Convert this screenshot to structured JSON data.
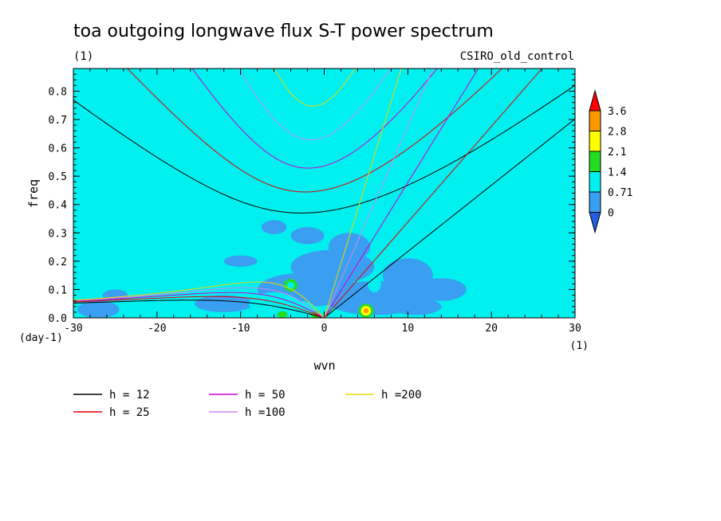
{
  "chart_data": {
    "type": "heatmap",
    "title": "toa outgoing longwave flux S-T power spectrum",
    "units_label": "(1)",
    "model_label": "CSIRO_old_control",
    "xlabel": "wvn",
    "ylabel": "freq",
    "y_units_label": "(day-1)",
    "x_units_label": "(1)",
    "xlim": [
      -30,
      30
    ],
    "ylim": [
      0,
      0.88
    ],
    "x_ticks": [
      "-30",
      "-20",
      "-10",
      "0",
      "10",
      "20",
      "30"
    ],
    "y_ticks": [
      "0.0",
      "0.1",
      "0.2",
      "0.3",
      "0.4",
      "0.5",
      "0.6",
      "0.7",
      "0.8"
    ],
    "colorbar": {
      "labels": [
        "0",
        "0.71",
        "1.4",
        "2.1",
        "2.8",
        "3.6"
      ],
      "colors": [
        "#1f5fe0",
        "#3a9ff0",
        "#00f0f0",
        "#22dd22",
        "#ffff00",
        "#ff9900",
        "#ff0000"
      ]
    },
    "background_level_color": "#00f0f0",
    "dispersion_curves": [
      {
        "label": "h = 12",
        "h": 12,
        "color": "#000000"
      },
      {
        "label": "h = 25",
        "h": 25,
        "color": "#e00000"
      },
      {
        "label": "h = 50",
        "h": 50,
        "color": "#cc00cc"
      },
      {
        "label": "h =100",
        "h": 100,
        "color": "#cc88ee"
      },
      {
        "label": "h =200",
        "h": 200,
        "color": "#e8d800"
      }
    ],
    "blobs": [
      {
        "x": -25,
        "y": 0.08,
        "rx": 1.5,
        "ry": 0.02,
        "level": 1
      },
      {
        "x": -27,
        "y": 0.03,
        "rx": 2.5,
        "ry": 0.03,
        "level": 1
      },
      {
        "x": -6,
        "y": 0.32,
        "rx": 1.5,
        "ry": 0.025,
        "level": 1
      },
      {
        "x": -2,
        "y": 0.29,
        "rx": 2.0,
        "ry": 0.03,
        "level": 1
      },
      {
        "x": 1,
        "y": 0.18,
        "rx": 5.0,
        "ry": 0.06,
        "level": 1
      },
      {
        "x": 3,
        "y": 0.25,
        "rx": 2.5,
        "ry": 0.05,
        "level": 1
      },
      {
        "x": -2,
        "y": 0.1,
        "rx": 6.0,
        "ry": 0.06,
        "level": 1
      },
      {
        "x": 6,
        "y": 0.07,
        "rx": 6.0,
        "ry": 0.06,
        "level": 1
      },
      {
        "x": 10,
        "y": 0.15,
        "rx": 3.0,
        "ry": 0.06,
        "level": 1
      },
      {
        "x": 14,
        "y": 0.1,
        "rx": 3.0,
        "ry": 0.04,
        "level": 1
      },
      {
        "x": 11,
        "y": 0.04,
        "rx": 3.0,
        "ry": 0.03,
        "level": 1
      },
      {
        "x": -10,
        "y": 0.2,
        "rx": 2.0,
        "ry": 0.02,
        "level": 1
      },
      {
        "x": -12,
        "y": 0.05,
        "rx": 3.5,
        "ry": 0.03,
        "level": 1
      },
      {
        "x": -6,
        "y": 0.05,
        "rx": 3.0,
        "ry": 0.04,
        "level": 2
      },
      {
        "x": -3,
        "y": 0.03,
        "rx": 2.0,
        "ry": 0.03,
        "level": 2
      },
      {
        "x": 6,
        "y": 0.12,
        "rx": 0.8,
        "ry": 0.03,
        "level": 2
      },
      {
        "x": -4,
        "y": 0.115,
        "rx": 0.8,
        "ry": 0.022,
        "level": 3
      },
      {
        "x": -4,
        "y": 0.115,
        "rx": 0.45,
        "ry": 0.012,
        "level": 2
      },
      {
        "x": 5,
        "y": 0.025,
        "rx": 0.9,
        "ry": 0.025,
        "level": 3
      },
      {
        "x": 5,
        "y": 0.025,
        "rx": 0.6,
        "ry": 0.017,
        "level": 4
      },
      {
        "x": 5,
        "y": 0.025,
        "rx": 0.3,
        "ry": 0.009,
        "level": 5
      },
      {
        "x": -1,
        "y": 0.012,
        "rx": 0.6,
        "ry": 0.012,
        "level": 3
      },
      {
        "x": -5,
        "y": 0.012,
        "rx": 0.6,
        "ry": 0.012,
        "level": 3
      }
    ]
  }
}
